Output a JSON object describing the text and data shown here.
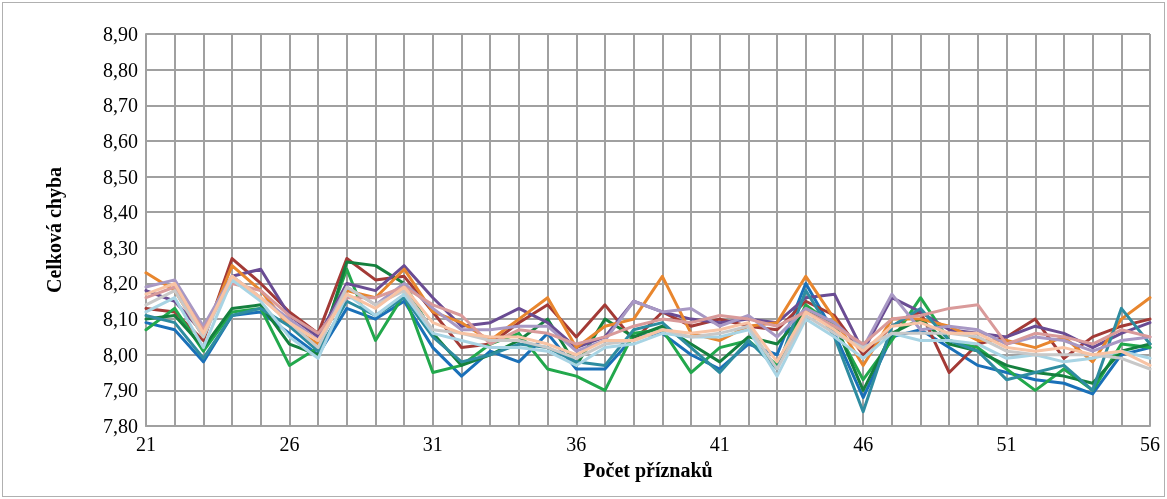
{
  "chart_data": {
    "type": "line",
    "xlabel": "Počet příznaků",
    "ylabel": "Celková chyba",
    "x": [
      21,
      22,
      23,
      24,
      25,
      26,
      27,
      28,
      29,
      30,
      31,
      32,
      33,
      34,
      35,
      36,
      37,
      38,
      39,
      40,
      41,
      42,
      43,
      44,
      45,
      46,
      47,
      48,
      49,
      50,
      51,
      52,
      53,
      54,
      55,
      56
    ],
    "xlim": [
      21,
      56
    ],
    "xticks": [
      21,
      {
        "value": 22,
        "label": null
      },
      {
        "value": 23,
        "label": null
      },
      {
        "value": 24,
        "label": null
      },
      {
        "value": 25,
        "label": null
      },
      26,
      {
        "value": 27,
        "label": null
      },
      {
        "value": 28,
        "label": null
      },
      {
        "value": 29,
        "label": null
      },
      {
        "value": 30,
        "label": null
      },
      31,
      {
        "value": 32,
        "label": null
      },
      {
        "value": 33,
        "label": null
      },
      {
        "value": 34,
        "label": null
      },
      {
        "value": 35,
        "label": null
      },
      36,
      {
        "value": 37,
        "label": null
      },
      {
        "value": 38,
        "label": null
      },
      {
        "value": 39,
        "label": null
      },
      {
        "value": 40,
        "label": null
      },
      41,
      {
        "value": 42,
        "label": null
      },
      {
        "value": 43,
        "label": null
      },
      {
        "value": 44,
        "label": null
      },
      {
        "value": 45,
        "label": null
      },
      46,
      {
        "value": 47,
        "label": null
      },
      {
        "value": 48,
        "label": null
      },
      {
        "value": 49,
        "label": null
      },
      {
        "value": 50,
        "label": null
      },
      51,
      {
        "value": 52,
        "label": null
      },
      {
        "value": 53,
        "label": null
      },
      {
        "value": 54,
        "label": null
      },
      {
        "value": 55,
        "label": null
      },
      56
    ],
    "ylim": [
      7.8,
      8.9
    ],
    "yticks": [
      {
        "value": 7.8,
        "label": "7,80"
      },
      {
        "value": 7.9,
        "label": "7,90"
      },
      {
        "value": 8.0,
        "label": "8,00"
      },
      {
        "value": 8.1,
        "label": "8,10"
      },
      {
        "value": 8.2,
        "label": "8,20"
      },
      {
        "value": 8.3,
        "label": "8,30"
      },
      {
        "value": 8.4,
        "label": "8,40"
      },
      {
        "value": 8.5,
        "label": "8,50"
      },
      {
        "value": 8.6,
        "label": "8,60"
      },
      {
        "value": 8.7,
        "label": "8,70"
      },
      {
        "value": 8.8,
        "label": "8,80"
      },
      {
        "value": 8.9,
        "label": "8,90"
      }
    ],
    "grid": true,
    "marker": "none",
    "line_style": "solid",
    "series": [
      {
        "color": "#1a70b8",
        "values": [
          8.09,
          8.07,
          7.98,
          8.11,
          8.12,
          8.06,
          8.0,
          8.13,
          8.1,
          8.15,
          8.02,
          7.94,
          8.01,
          7.98,
          8.06,
          7.96,
          7.96,
          8.05,
          8.06,
          8.0,
          7.96,
          8.03,
          8.0,
          8.2,
          8.06,
          7.88,
          8.05,
          8.07,
          8.02,
          7.97,
          7.95,
          7.93,
          7.92,
          7.89,
          8.0,
          8.02
        ]
      },
      {
        "color": "#a33a36",
        "values": [
          8.13,
          8.12,
          8.04,
          8.27,
          8.2,
          8.12,
          8.06,
          8.27,
          8.21,
          8.22,
          8.12,
          8.02,
          8.03,
          8.09,
          8.14,
          8.05,
          8.14,
          8.04,
          8.12,
          8.08,
          8.1,
          8.08,
          8.07,
          8.15,
          8.11,
          8.0,
          8.08,
          8.12,
          7.95,
          8.03,
          8.05,
          8.1,
          7.99,
          8.05,
          8.08,
          8.1
        ]
      },
      {
        "color": "#22a84c",
        "values": [
          8.07,
          8.13,
          8.01,
          8.12,
          8.13,
          7.97,
          8.02,
          8.24,
          8.04,
          8.17,
          7.95,
          7.97,
          8.03,
          8.06,
          7.96,
          7.94,
          7.9,
          8.06,
          8.07,
          7.95,
          8.02,
          8.04,
          7.97,
          8.14,
          8.08,
          7.93,
          8.04,
          8.16,
          8.04,
          8.02,
          7.96,
          7.9,
          7.96,
          7.9,
          8.03,
          8.02
        ]
      },
      {
        "color": "#15803e",
        "values": [
          8.1,
          8.11,
          8.02,
          8.13,
          8.14,
          8.03,
          8.0,
          8.26,
          8.25,
          8.2,
          8.06,
          7.97,
          8.0,
          8.04,
          8.1,
          7.97,
          8.1,
          8.05,
          8.08,
          8.03,
          7.98,
          8.05,
          8.03,
          8.12,
          8.09,
          7.9,
          8.06,
          8.1,
          8.03,
          8.01,
          7.97,
          7.95,
          7.94,
          7.92,
          8.01,
          8.03
        ]
      },
      {
        "color": "#6a4c93",
        "values": [
          8.18,
          8.15,
          8.06,
          8.22,
          8.24,
          8.11,
          8.05,
          8.2,
          8.18,
          8.25,
          8.16,
          8.08,
          8.09,
          8.13,
          8.09,
          8.02,
          8.05,
          8.15,
          8.12,
          8.1,
          8.09,
          8.1,
          8.09,
          8.16,
          8.17,
          8.01,
          8.16,
          8.12,
          8.07,
          8.06,
          8.05,
          8.08,
          8.06,
          8.02,
          8.06,
          8.09
        ]
      },
      {
        "color": "#e8862e",
        "values": [
          8.23,
          8.18,
          8.05,
          8.25,
          8.18,
          8.08,
          8.03,
          8.18,
          8.16,
          8.24,
          8.12,
          8.09,
          8.04,
          8.1,
          8.16,
          8.02,
          8.08,
          8.1,
          8.22,
          8.06,
          8.04,
          8.08,
          8.09,
          8.22,
          8.1,
          7.97,
          8.1,
          8.1,
          8.08,
          8.04,
          8.04,
          8.02,
          8.05,
          7.98,
          8.1,
          8.16
        ]
      },
      {
        "color": "#2e8ca0",
        "values": [
          8.11,
          8.09,
          7.99,
          8.11,
          8.13,
          8.08,
          8.01,
          8.15,
          8.11,
          8.16,
          8.05,
          7.98,
          8.0,
          8.03,
          8.02,
          7.98,
          7.97,
          8.07,
          8.09,
          8.02,
          7.95,
          8.04,
          7.96,
          8.18,
          8.05,
          7.84,
          8.08,
          8.13,
          8.04,
          8.01,
          7.93,
          7.95,
          7.97,
          7.9,
          8.13,
          8.03
        ]
      },
      {
        "color": "#a898c4",
        "values": [
          8.19,
          8.21,
          8.08,
          8.22,
          8.16,
          8.1,
          8.04,
          8.19,
          8.14,
          8.2,
          8.13,
          8.07,
          8.07,
          8.08,
          8.08,
          8.01,
          8.04,
          8.15,
          8.12,
          8.13,
          8.08,
          8.11,
          8.05,
          8.13,
          8.09,
          8.02,
          8.17,
          8.07,
          8.08,
          8.07,
          8.03,
          8.05,
          8.04,
          8.01,
          8.04,
          8.05
        ]
      },
      {
        "color": "#d99a9a",
        "values": [
          8.16,
          8.19,
          8.07,
          8.2,
          8.18,
          8.11,
          8.06,
          8.16,
          8.16,
          8.19,
          8.14,
          8.11,
          8.03,
          8.07,
          8.06,
          8.03,
          8.05,
          8.08,
          8.1,
          8.09,
          8.11,
          8.1,
          8.08,
          8.12,
          8.08,
          8.03,
          8.1,
          8.11,
          8.13,
          8.14,
          8.03,
          8.06,
          8.05,
          8.03,
          8.07,
          8.05
        ]
      },
      {
        "color": "#a8d4e4",
        "values": [
          8.12,
          8.16,
          8.02,
          8.21,
          8.15,
          8.05,
          7.99,
          8.17,
          8.11,
          8.17,
          8.06,
          8.04,
          8.02,
          8.02,
          8.01,
          7.97,
          8.02,
          8.03,
          8.06,
          8.05,
          8.05,
          8.07,
          7.94,
          8.1,
          8.05,
          7.99,
          8.06,
          8.04,
          8.04,
          8.03,
          7.99,
          8.0,
          7.98,
          7.99,
          8.01,
          7.99
        ]
      },
      {
        "color": "#c8c8c8",
        "values": [
          8.14,
          8.18,
          8.05,
          8.22,
          8.16,
          8.09,
          8.02,
          8.19,
          8.14,
          8.18,
          8.07,
          8.06,
          8.04,
          8.04,
          8.02,
          7.99,
          8.03,
          8.04,
          8.07,
          8.05,
          8.06,
          8.08,
          7.96,
          8.11,
          8.06,
          8.02,
          8.06,
          8.06,
          8.06,
          8.05,
          8.01,
          8.0,
          8.0,
          8.0,
          7.99,
          7.96
        ]
      },
      {
        "color": "#f8c3a4",
        "values": [
          8.17,
          8.2,
          8.06,
          8.22,
          8.16,
          8.09,
          8.04,
          8.17,
          8.13,
          8.19,
          8.09,
          8.06,
          8.05,
          8.05,
          8.03,
          8.0,
          8.04,
          8.04,
          8.07,
          8.06,
          8.07,
          8.09,
          7.98,
          8.12,
          8.07,
          8.01,
          8.08,
          8.09,
          8.06,
          8.06,
          8.02,
          8.01,
          8.02,
          8.0,
          8.01,
          7.97
        ]
      }
    ]
  }
}
